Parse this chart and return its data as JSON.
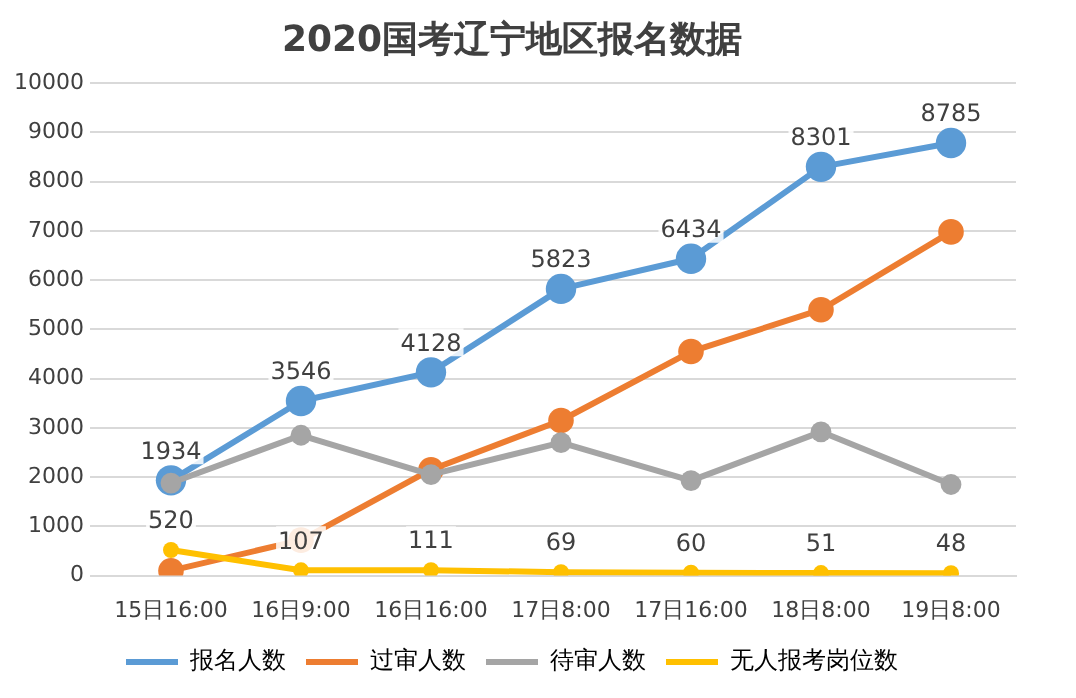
{
  "chart_data": {
    "type": "line",
    "title": "2020国考辽宁地区报名数据",
    "categories": [
      "15日16:00",
      "16日9:00",
      "16日16:00",
      "17日8:00",
      "17日16:00",
      "18日8:00",
      "19日8:00"
    ],
    "series": [
      {
        "name": "报名人数",
        "color": "#5b9bd5",
        "values": [
          1934,
          3546,
          4128,
          5823,
          6434,
          8301,
          8785
        ],
        "value_labels": [
          "1934",
          "3546",
          "4128",
          "5823",
          "6434",
          "8301",
          "8785"
        ]
      },
      {
        "name": "过审人数",
        "color": "#ed7d31",
        "values": [
          100,
          720,
          2150,
          3150,
          4550,
          5400,
          6980
        ]
      },
      {
        "name": "待审人数",
        "color": "#a5a5a5",
        "values": [
          1880,
          2850,
          2050,
          2700,
          1930,
          2920,
          1850
        ]
      },
      {
        "name": "无人报考岗位数",
        "color": "#ffc000",
        "values": [
          520,
          107,
          111,
          69,
          60,
          51,
          48
        ],
        "value_labels": [
          "520",
          "107",
          "111",
          "69",
          "60",
          "51",
          "48"
        ]
      }
    ],
    "ylim": [
      0,
      10000
    ],
    "yticks": [
      0,
      1000,
      2000,
      3000,
      4000,
      5000,
      6000,
      7000,
      8000,
      9000,
      10000
    ],
    "grid": "y",
    "legend": "bottom",
    "marker": "circle",
    "line_style": "solid"
  }
}
